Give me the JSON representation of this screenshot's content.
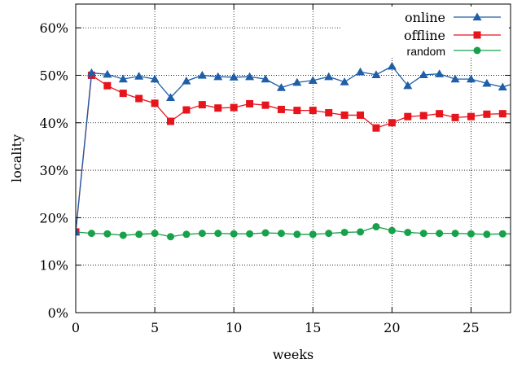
{
  "chart_data": {
    "type": "line",
    "xlabel": "weeks",
    "ylabel": "locality",
    "xlim": [
      0,
      27.5
    ],
    "ylim": [
      0,
      0.65
    ],
    "xticks": [
      {
        "value": 0,
        "label": "0"
      },
      {
        "value": 5,
        "label": "5"
      },
      {
        "value": 10,
        "label": "10"
      },
      {
        "value": 15,
        "label": "15"
      },
      {
        "value": 20,
        "label": "20"
      },
      {
        "value": 25,
        "label": "25"
      }
    ],
    "yticks": [
      {
        "value": 0,
        "label": "0%"
      },
      {
        "value": 0.1,
        "label": "10%"
      },
      {
        "value": 0.2,
        "label": "20%"
      },
      {
        "value": 0.3,
        "label": "30%"
      },
      {
        "value": 0.4,
        "label": "40%"
      },
      {
        "value": 0.5,
        "label": "50%"
      },
      {
        "value": 0.6,
        "label": "60%"
      }
    ],
    "grid": true,
    "legend_position": "top-right",
    "x": [
      0,
      1,
      2,
      3,
      4,
      5,
      6,
      7,
      8,
      9,
      10,
      11,
      12,
      13,
      14,
      15,
      16,
      17,
      18,
      19,
      20,
      21,
      22,
      23,
      24,
      25,
      26,
      27,
      28
    ],
    "series": [
      {
        "name": "online",
        "color": "#1f5fa8",
        "marker": "triangle",
        "values": [
          0.17,
          0.505,
          0.502,
          0.492,
          0.498,
          0.492,
          0.453,
          0.488,
          0.5,
          0.497,
          0.496,
          0.497,
          0.492,
          0.474,
          0.485,
          0.489,
          0.497,
          0.486,
          0.507,
          0.501,
          0.519,
          0.478,
          0.501,
          0.503,
          0.492,
          0.492,
          0.483,
          0.475,
          0.486
        ]
      },
      {
        "name": "offline",
        "color": "#e8141c",
        "marker": "square",
        "values": [
          0.17,
          0.5,
          0.478,
          0.462,
          0.451,
          0.441,
          0.403,
          0.427,
          0.438,
          0.431,
          0.432,
          0.44,
          0.437,
          0.428,
          0.426,
          0.426,
          0.421,
          0.416,
          0.416,
          0.389,
          0.4,
          0.413,
          0.415,
          0.419,
          0.411,
          0.413,
          0.418,
          0.419,
          0.418
        ]
      },
      {
        "name": "random",
        "color": "#17a14a",
        "marker": "circle",
        "values": [
          0.17,
          0.167,
          0.166,
          0.163,
          0.165,
          0.167,
          0.16,
          0.165,
          0.167,
          0.167,
          0.166,
          0.166,
          0.168,
          0.167,
          0.165,
          0.165,
          0.167,
          0.169,
          0.17,
          0.181,
          0.173,
          0.169,
          0.167,
          0.167,
          0.167,
          0.166,
          0.165,
          0.166,
          0.166
        ]
      }
    ]
  }
}
